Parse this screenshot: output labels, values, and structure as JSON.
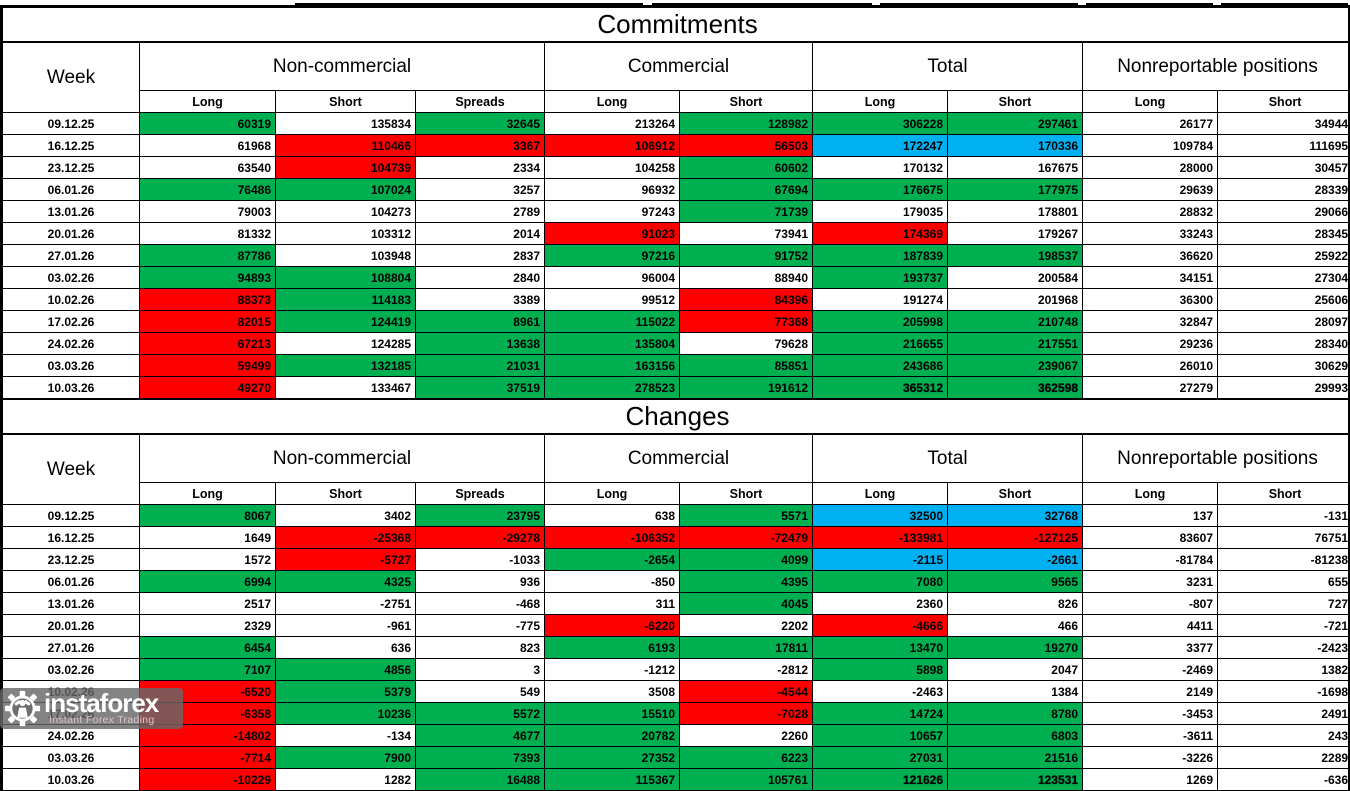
{
  "colors": {
    "highlight_green": "#00B050",
    "highlight_red": "#FF0000",
    "highlight_blue": "#00B0F0",
    "grid_border": "#000000",
    "watermark_background": "rgba(104,104,104,0.82)"
  },
  "columns": {
    "week_label": "Week",
    "groups": [
      {
        "label": "Non-commercial",
        "cols": [
          "Long",
          "Short",
          "Spreads"
        ]
      },
      {
        "label": "Commercial",
        "cols": [
          "Long",
          "Short"
        ]
      },
      {
        "label": "Total",
        "cols": [
          "Long",
          "Short"
        ]
      },
      {
        "label": "Nonreportable positions",
        "cols": [
          "Long",
          "Short"
        ]
      }
    ]
  },
  "tables": [
    {
      "title": "Commitments",
      "rows": [
        {
          "week": "09.12.25",
          "cells": [
            [
              "60319",
              "g"
            ],
            [
              "135834",
              "w"
            ],
            [
              "32645",
              "g"
            ],
            [
              "213264",
              "w"
            ],
            [
              "128982",
              "g"
            ],
            [
              "306228",
              "g"
            ],
            [
              "297461",
              "g"
            ],
            [
              "26177",
              "w"
            ],
            [
              "34944",
              "w"
            ]
          ]
        },
        {
          "week": "16.12.25",
          "cells": [
            [
              "61968",
              "w"
            ],
            [
              "110466",
              "r"
            ],
            [
              "3367",
              "r"
            ],
            [
              "106912",
              "r"
            ],
            [
              "56503",
              "r"
            ],
            [
              "172247",
              "b"
            ],
            [
              "170336",
              "b"
            ],
            [
              "109784",
              "w"
            ],
            [
              "111695",
              "w"
            ]
          ]
        },
        {
          "week": "23.12.25",
          "cells": [
            [
              "63540",
              "w"
            ],
            [
              "104739",
              "r"
            ],
            [
              "2334",
              "w"
            ],
            [
              "104258",
              "w"
            ],
            [
              "60602",
              "g"
            ],
            [
              "170132",
              "w"
            ],
            [
              "167675",
              "w"
            ],
            [
              "28000",
              "w"
            ],
            [
              "30457",
              "w"
            ]
          ]
        },
        {
          "week": "06.01.26",
          "cells": [
            [
              "76486",
              "g"
            ],
            [
              "107024",
              "g"
            ],
            [
              "3257",
              "w"
            ],
            [
              "96932",
              "w"
            ],
            [
              "67694",
              "g"
            ],
            [
              "176675",
              "g"
            ],
            [
              "177975",
              "g"
            ],
            [
              "29639",
              "w"
            ],
            [
              "28339",
              "w"
            ]
          ]
        },
        {
          "week": "13.01.26",
          "cells": [
            [
              "79003",
              "w"
            ],
            [
              "104273",
              "w"
            ],
            [
              "2789",
              "w"
            ],
            [
              "97243",
              "w"
            ],
            [
              "71739",
              "g"
            ],
            [
              "179035",
              "w"
            ],
            [
              "178801",
              "w"
            ],
            [
              "28832",
              "w"
            ],
            [
              "29066",
              "w"
            ]
          ]
        },
        {
          "week": "20.01.26",
          "cells": [
            [
              "81332",
              "w"
            ],
            [
              "103312",
              "w"
            ],
            [
              "2014",
              "w"
            ],
            [
              "91023",
              "r"
            ],
            [
              "73941",
              "w"
            ],
            [
              "174369",
              "r"
            ],
            [
              "179267",
              "w"
            ],
            [
              "33243",
              "w"
            ],
            [
              "28345",
              "w"
            ]
          ]
        },
        {
          "week": "27.01.26",
          "cells": [
            [
              "87786",
              "g"
            ],
            [
              "103948",
              "w"
            ],
            [
              "2837",
              "w"
            ],
            [
              "97216",
              "g"
            ],
            [
              "91752",
              "g"
            ],
            [
              "187839",
              "g"
            ],
            [
              "198537",
              "g"
            ],
            [
              "36620",
              "w"
            ],
            [
              "25922",
              "w"
            ]
          ]
        },
        {
          "week": "03.02.26",
          "cells": [
            [
              "94893",
              "g"
            ],
            [
              "108804",
              "g"
            ],
            [
              "2840",
              "w"
            ],
            [
              "96004",
              "w"
            ],
            [
              "88940",
              "w"
            ],
            [
              "193737",
              "g"
            ],
            [
              "200584",
              "w"
            ],
            [
              "34151",
              "w"
            ],
            [
              "27304",
              "w"
            ]
          ]
        },
        {
          "week": "10.02.26",
          "cells": [
            [
              "88373",
              "r"
            ],
            [
              "114183",
              "g"
            ],
            [
              "3389",
              "w"
            ],
            [
              "99512",
              "w"
            ],
            [
              "84396",
              "r"
            ],
            [
              "191274",
              "w"
            ],
            [
              "201968",
              "w"
            ],
            [
              "36300",
              "w"
            ],
            [
              "25606",
              "w"
            ]
          ]
        },
        {
          "week": "17.02.26",
          "cells": [
            [
              "82015",
              "r"
            ],
            [
              "124419",
              "g"
            ],
            [
              "8961",
              "g"
            ],
            [
              "115022",
              "g"
            ],
            [
              "77368",
              "r"
            ],
            [
              "205998",
              "g"
            ],
            [
              "210748",
              "g"
            ],
            [
              "32847",
              "w"
            ],
            [
              "28097",
              "w"
            ]
          ]
        },
        {
          "week": "24.02.26",
          "cells": [
            [
              "67213",
              "r"
            ],
            [
              "124285",
              "w"
            ],
            [
              "13638",
              "g"
            ],
            [
              "135804",
              "g"
            ],
            [
              "79628",
              "w"
            ],
            [
              "216655",
              "g"
            ],
            [
              "217551",
              "g"
            ],
            [
              "29236",
              "w"
            ],
            [
              "28340",
              "w"
            ]
          ]
        },
        {
          "week": "03.03.26",
          "cells": [
            [
              "59499",
              "r"
            ],
            [
              "132185",
              "g"
            ],
            [
              "21031",
              "g"
            ],
            [
              "163156",
              "g"
            ],
            [
              "85851",
              "g"
            ],
            [
              "243686",
              "g"
            ],
            [
              "239067",
              "g"
            ],
            [
              "26010",
              "w"
            ],
            [
              "30629",
              "w"
            ]
          ]
        },
        {
          "week": "10.03.26",
          "cells": [
            [
              "49270",
              "r"
            ],
            [
              "133467",
              "w"
            ],
            [
              "37519",
              "g"
            ],
            [
              "278523",
              "g"
            ],
            [
              "191612",
              "g"
            ],
            [
              "365312",
              "g",
              "bold"
            ],
            [
              "362598",
              "g",
              "bold"
            ],
            [
              "27279",
              "w"
            ],
            [
              "29993",
              "w"
            ]
          ]
        }
      ]
    },
    {
      "title": "Changes",
      "rows": [
        {
          "week": "09.12.25",
          "cells": [
            [
              "8067",
              "g"
            ],
            [
              "3402",
              "w"
            ],
            [
              "23795",
              "g"
            ],
            [
              "638",
              "w"
            ],
            [
              "5571",
              "g"
            ],
            [
              "32500",
              "b"
            ],
            [
              "32768",
              "b"
            ],
            [
              "137",
              "w"
            ],
            [
              "-131",
              "w"
            ]
          ]
        },
        {
          "week": "16.12.25",
          "cells": [
            [
              "1649",
              "w"
            ],
            [
              "-25368",
              "r"
            ],
            [
              "-29278",
              "r"
            ],
            [
              "-106352",
              "r"
            ],
            [
              "-72479",
              "r"
            ],
            [
              "-133981",
              "r"
            ],
            [
              "-127125",
              "r"
            ],
            [
              "83607",
              "w"
            ],
            [
              "76751",
              "w"
            ]
          ]
        },
        {
          "week": "23.12.25",
          "cells": [
            [
              "1572",
              "w"
            ],
            [
              "-5727",
              "r"
            ],
            [
              "-1033",
              "w"
            ],
            [
              "-2654",
              "g"
            ],
            [
              "4099",
              "g"
            ],
            [
              "-2115",
              "b"
            ],
            [
              "-2661",
              "b"
            ],
            [
              "-81784",
              "w"
            ],
            [
              "-81238",
              "w"
            ]
          ]
        },
        {
          "week": "06.01.26",
          "cells": [
            [
              "6994",
              "g"
            ],
            [
              "4325",
              "g"
            ],
            [
              "936",
              "w"
            ],
            [
              "-850",
              "w"
            ],
            [
              "4395",
              "g"
            ],
            [
              "7080",
              "g"
            ],
            [
              "9565",
              "g"
            ],
            [
              "3231",
              "w"
            ],
            [
              "655",
              "w"
            ]
          ]
        },
        {
          "week": "13.01.26",
          "cells": [
            [
              "2517",
              "w"
            ],
            [
              "-2751",
              "w"
            ],
            [
              "-468",
              "w"
            ],
            [
              "311",
              "w"
            ],
            [
              "4045",
              "g"
            ],
            [
              "2360",
              "w"
            ],
            [
              "826",
              "w"
            ],
            [
              "-807",
              "w"
            ],
            [
              "727",
              "w"
            ]
          ]
        },
        {
          "week": "20.01.26",
          "cells": [
            [
              "2329",
              "w"
            ],
            [
              "-961",
              "w"
            ],
            [
              "-775",
              "w"
            ],
            [
              "-6220",
              "r"
            ],
            [
              "2202",
              "w"
            ],
            [
              "-4666",
              "r"
            ],
            [
              "466",
              "w"
            ],
            [
              "4411",
              "w"
            ],
            [
              "-721",
              "w"
            ]
          ]
        },
        {
          "week": "27.01.26",
          "cells": [
            [
              "6454",
              "g"
            ],
            [
              "636",
              "w"
            ],
            [
              "823",
              "w"
            ],
            [
              "6193",
              "g"
            ],
            [
              "17811",
              "g"
            ],
            [
              "13470",
              "g"
            ],
            [
              "19270",
              "g"
            ],
            [
              "3377",
              "w"
            ],
            [
              "-2423",
              "w"
            ]
          ]
        },
        {
          "week": "03.02.26",
          "cells": [
            [
              "7107",
              "g"
            ],
            [
              "4856",
              "g"
            ],
            [
              "3",
              "w"
            ],
            [
              "-1212",
              "w"
            ],
            [
              "-2812",
              "w"
            ],
            [
              "5898",
              "g"
            ],
            [
              "2047",
              "w"
            ],
            [
              "-2469",
              "w"
            ],
            [
              "1382",
              "w"
            ]
          ]
        },
        {
          "week": "10.02.26",
          "cells": [
            [
              "-6520",
              "r"
            ],
            [
              "5379",
              "g"
            ],
            [
              "549",
              "w"
            ],
            [
              "3508",
              "w"
            ],
            [
              "-4544",
              "r"
            ],
            [
              "-2463",
              "w"
            ],
            [
              "1384",
              "w"
            ],
            [
              "2149",
              "w"
            ],
            [
              "-1698",
              "w"
            ]
          ]
        },
        {
          "week": "17.02.26",
          "cells": [
            [
              "-6358",
              "r"
            ],
            [
              "10236",
              "g"
            ],
            [
              "5572",
              "g"
            ],
            [
              "15510",
              "g"
            ],
            [
              "-7028",
              "r"
            ],
            [
              "14724",
              "g"
            ],
            [
              "8780",
              "g"
            ],
            [
              "-3453",
              "w"
            ],
            [
              "2491",
              "w"
            ]
          ]
        },
        {
          "week": "24.02.26",
          "cells": [
            [
              "-14802",
              "r"
            ],
            [
              "-134",
              "w"
            ],
            [
              "4677",
              "g"
            ],
            [
              "20782",
              "g"
            ],
            [
              "2260",
              "w"
            ],
            [
              "10657",
              "g"
            ],
            [
              "6803",
              "g"
            ],
            [
              "-3611",
              "w"
            ],
            [
              "243",
              "w"
            ]
          ]
        },
        {
          "week": "03.03.26",
          "cells": [
            [
              "-7714",
              "r"
            ],
            [
              "7900",
              "g"
            ],
            [
              "7393",
              "g"
            ],
            [
              "27352",
              "g"
            ],
            [
              "6223",
              "g"
            ],
            [
              "27031",
              "g"
            ],
            [
              "21516",
              "g"
            ],
            [
              "-3226",
              "w"
            ],
            [
              "2289",
              "w"
            ]
          ]
        },
        {
          "week": "10.03.26",
          "cells": [
            [
              "-10229",
              "r"
            ],
            [
              "1282",
              "w"
            ],
            [
              "16488",
              "g"
            ],
            [
              "115367",
              "g"
            ],
            [
              "105761",
              "g"
            ],
            [
              "121626",
              "g",
              "bold"
            ],
            [
              "123531",
              "g",
              "bold"
            ],
            [
              "1269",
              "w"
            ],
            [
              "-636",
              "w"
            ]
          ]
        }
      ]
    }
  ],
  "watermark": {
    "brand": "instaforex",
    "tagline": "Instant Forex Trading"
  }
}
